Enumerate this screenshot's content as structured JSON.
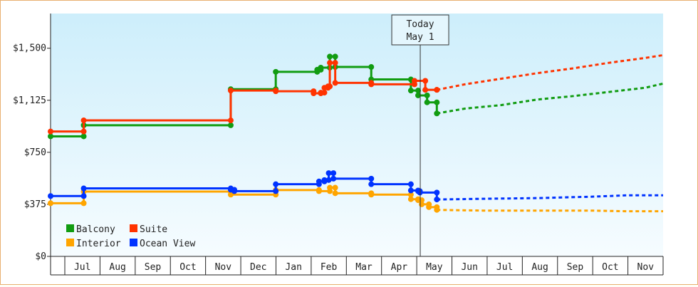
{
  "chart_data": {
    "type": "line",
    "yticks": [
      "$0",
      "$375",
      "$750",
      "$1,125",
      "$1,500"
    ],
    "ylim": [
      0,
      1750
    ],
    "xlim": [
      0,
      17
    ],
    "months": [
      "Jul",
      "Aug",
      "Sep",
      "Oct",
      "Nov",
      "Dec",
      "Jan",
      "Feb",
      "Mar",
      "Apr",
      "May",
      "Jun",
      "Jul",
      "Aug",
      "Sep",
      "Oct",
      "Nov"
    ],
    "today": {
      "line1": "Today",
      "line2": "May 1",
      "x": 10.26
    },
    "legend_position": "bottom-left",
    "series": [
      {
        "name": "Balcony",
        "color": "#119c11",
        "points": [
          [
            0,
            865
          ],
          [
            0.9,
            865
          ],
          [
            0.92,
            945
          ],
          [
            4.95,
            945
          ],
          [
            5.0,
            1205
          ],
          [
            6.2,
            1205
          ],
          [
            6.25,
            1330
          ],
          [
            7.25,
            1330
          ],
          [
            7.4,
            1345
          ],
          [
            7.5,
            1360
          ],
          [
            7.75,
            1440
          ],
          [
            7.82,
            1440
          ],
          [
            7.9,
            1365
          ],
          [
            8.85,
            1365
          ],
          [
            8.9,
            1275
          ],
          [
            9.95,
            1275
          ],
          [
            10.0,
            1195
          ],
          [
            10.1,
            1195
          ],
          [
            10.2,
            1160
          ],
          [
            10.4,
            1160
          ],
          [
            10.45,
            1110
          ],
          [
            10.7,
            1110
          ],
          [
            10.72,
            1030
          ]
        ],
        "forecast": [
          [
            10.72,
            1030
          ],
          [
            11.5,
            1065
          ],
          [
            12.5,
            1090
          ],
          [
            13.5,
            1130
          ],
          [
            14.5,
            1155
          ],
          [
            15.5,
            1185
          ],
          [
            16.5,
            1215
          ],
          [
            17,
            1245
          ]
        ]
      },
      {
        "name": "Suite",
        "color": "#ff3300",
        "points": [
          [
            0,
            900
          ],
          [
            0.9,
            900
          ],
          [
            0.92,
            980
          ],
          [
            4.95,
            980
          ],
          [
            5.0,
            1195
          ],
          [
            6.2,
            1195
          ],
          [
            6.25,
            1190
          ],
          [
            7.2,
            1190
          ],
          [
            7.3,
            1175
          ],
          [
            7.5,
            1180
          ],
          [
            7.6,
            1215
          ],
          [
            7.7,
            1225
          ],
          [
            7.75,
            1395
          ],
          [
            7.82,
            1395
          ],
          [
            7.9,
            1250
          ],
          [
            8.85,
            1250
          ],
          [
            8.9,
            1240
          ],
          [
            9.95,
            1240
          ],
          [
            10.1,
            1265
          ],
          [
            10.3,
            1265
          ],
          [
            10.4,
            1200
          ],
          [
            10.7,
            1200
          ],
          [
            10.72,
            1200
          ]
        ],
        "forecast": [
          [
            10.72,
            1200
          ],
          [
            11.5,
            1240
          ],
          [
            12.5,
            1280
          ],
          [
            13.5,
            1320
          ],
          [
            14.5,
            1355
          ],
          [
            15.5,
            1395
          ],
          [
            16.5,
            1430
          ],
          [
            17,
            1450
          ]
        ]
      },
      {
        "name": "Interior",
        "color": "#ffa500",
        "points": [
          [
            0,
            383
          ],
          [
            0.9,
            383
          ],
          [
            0.92,
            467
          ],
          [
            4.95,
            467
          ],
          [
            5.0,
            445
          ],
          [
            6.2,
            445
          ],
          [
            6.25,
            478
          ],
          [
            7.25,
            478
          ],
          [
            7.45,
            470
          ],
          [
            7.65,
            470
          ],
          [
            7.75,
            495
          ],
          [
            7.8,
            495
          ],
          [
            7.9,
            455
          ],
          [
            8.85,
            455
          ],
          [
            8.9,
            445
          ],
          [
            9.95,
            445
          ],
          [
            10.0,
            412
          ],
          [
            10.2,
            405
          ],
          [
            10.3,
            375
          ],
          [
            10.45,
            375
          ],
          [
            10.5,
            355
          ],
          [
            10.7,
            355
          ],
          [
            10.72,
            335
          ]
        ],
        "forecast": [
          [
            10.72,
            335
          ],
          [
            12,
            330
          ],
          [
            13.5,
            330
          ],
          [
            15,
            330
          ],
          [
            16,
            325
          ],
          [
            17,
            325
          ]
        ]
      },
      {
        "name": "Ocean View",
        "color": "#0033ff",
        "points": [
          [
            0,
            435
          ],
          [
            0.9,
            435
          ],
          [
            0.92,
            490
          ],
          [
            4.95,
            490
          ],
          [
            5.0,
            480
          ],
          [
            5.1,
            470
          ],
          [
            6.2,
            470
          ],
          [
            6.25,
            520
          ],
          [
            7.2,
            520
          ],
          [
            7.25,
            520
          ],
          [
            7.45,
            540
          ],
          [
            7.6,
            550
          ],
          [
            7.72,
            600
          ],
          [
            7.8,
            600
          ],
          [
            7.85,
            560
          ],
          [
            8.85,
            560
          ],
          [
            8.9,
            520
          ],
          [
            9.95,
            520
          ],
          [
            10.0,
            475
          ],
          [
            10.2,
            470
          ],
          [
            10.25,
            460
          ],
          [
            10.7,
            460
          ],
          [
            10.72,
            410
          ]
        ],
        "forecast": [
          [
            10.72,
            410
          ],
          [
            12,
            415
          ],
          [
            13.5,
            420
          ],
          [
            15,
            430
          ],
          [
            16,
            440
          ],
          [
            17,
            440
          ]
        ]
      }
    ]
  }
}
